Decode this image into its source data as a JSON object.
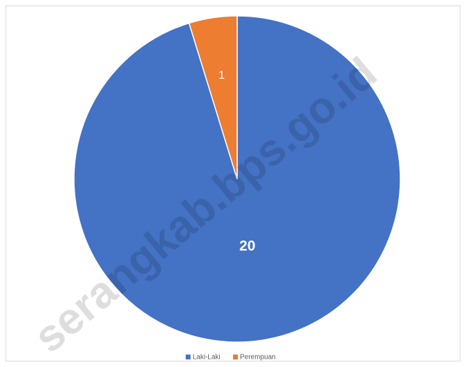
{
  "chart_data": {
    "type": "pie",
    "categories": [
      "Laki-Laki",
      "Perempuan"
    ],
    "values": [
      20,
      1
    ],
    "colors": [
      "#4472c4",
      "#ed7d31"
    ],
    "legend": "bottom",
    "watermark": "serangkab.bps.go.id"
  }
}
